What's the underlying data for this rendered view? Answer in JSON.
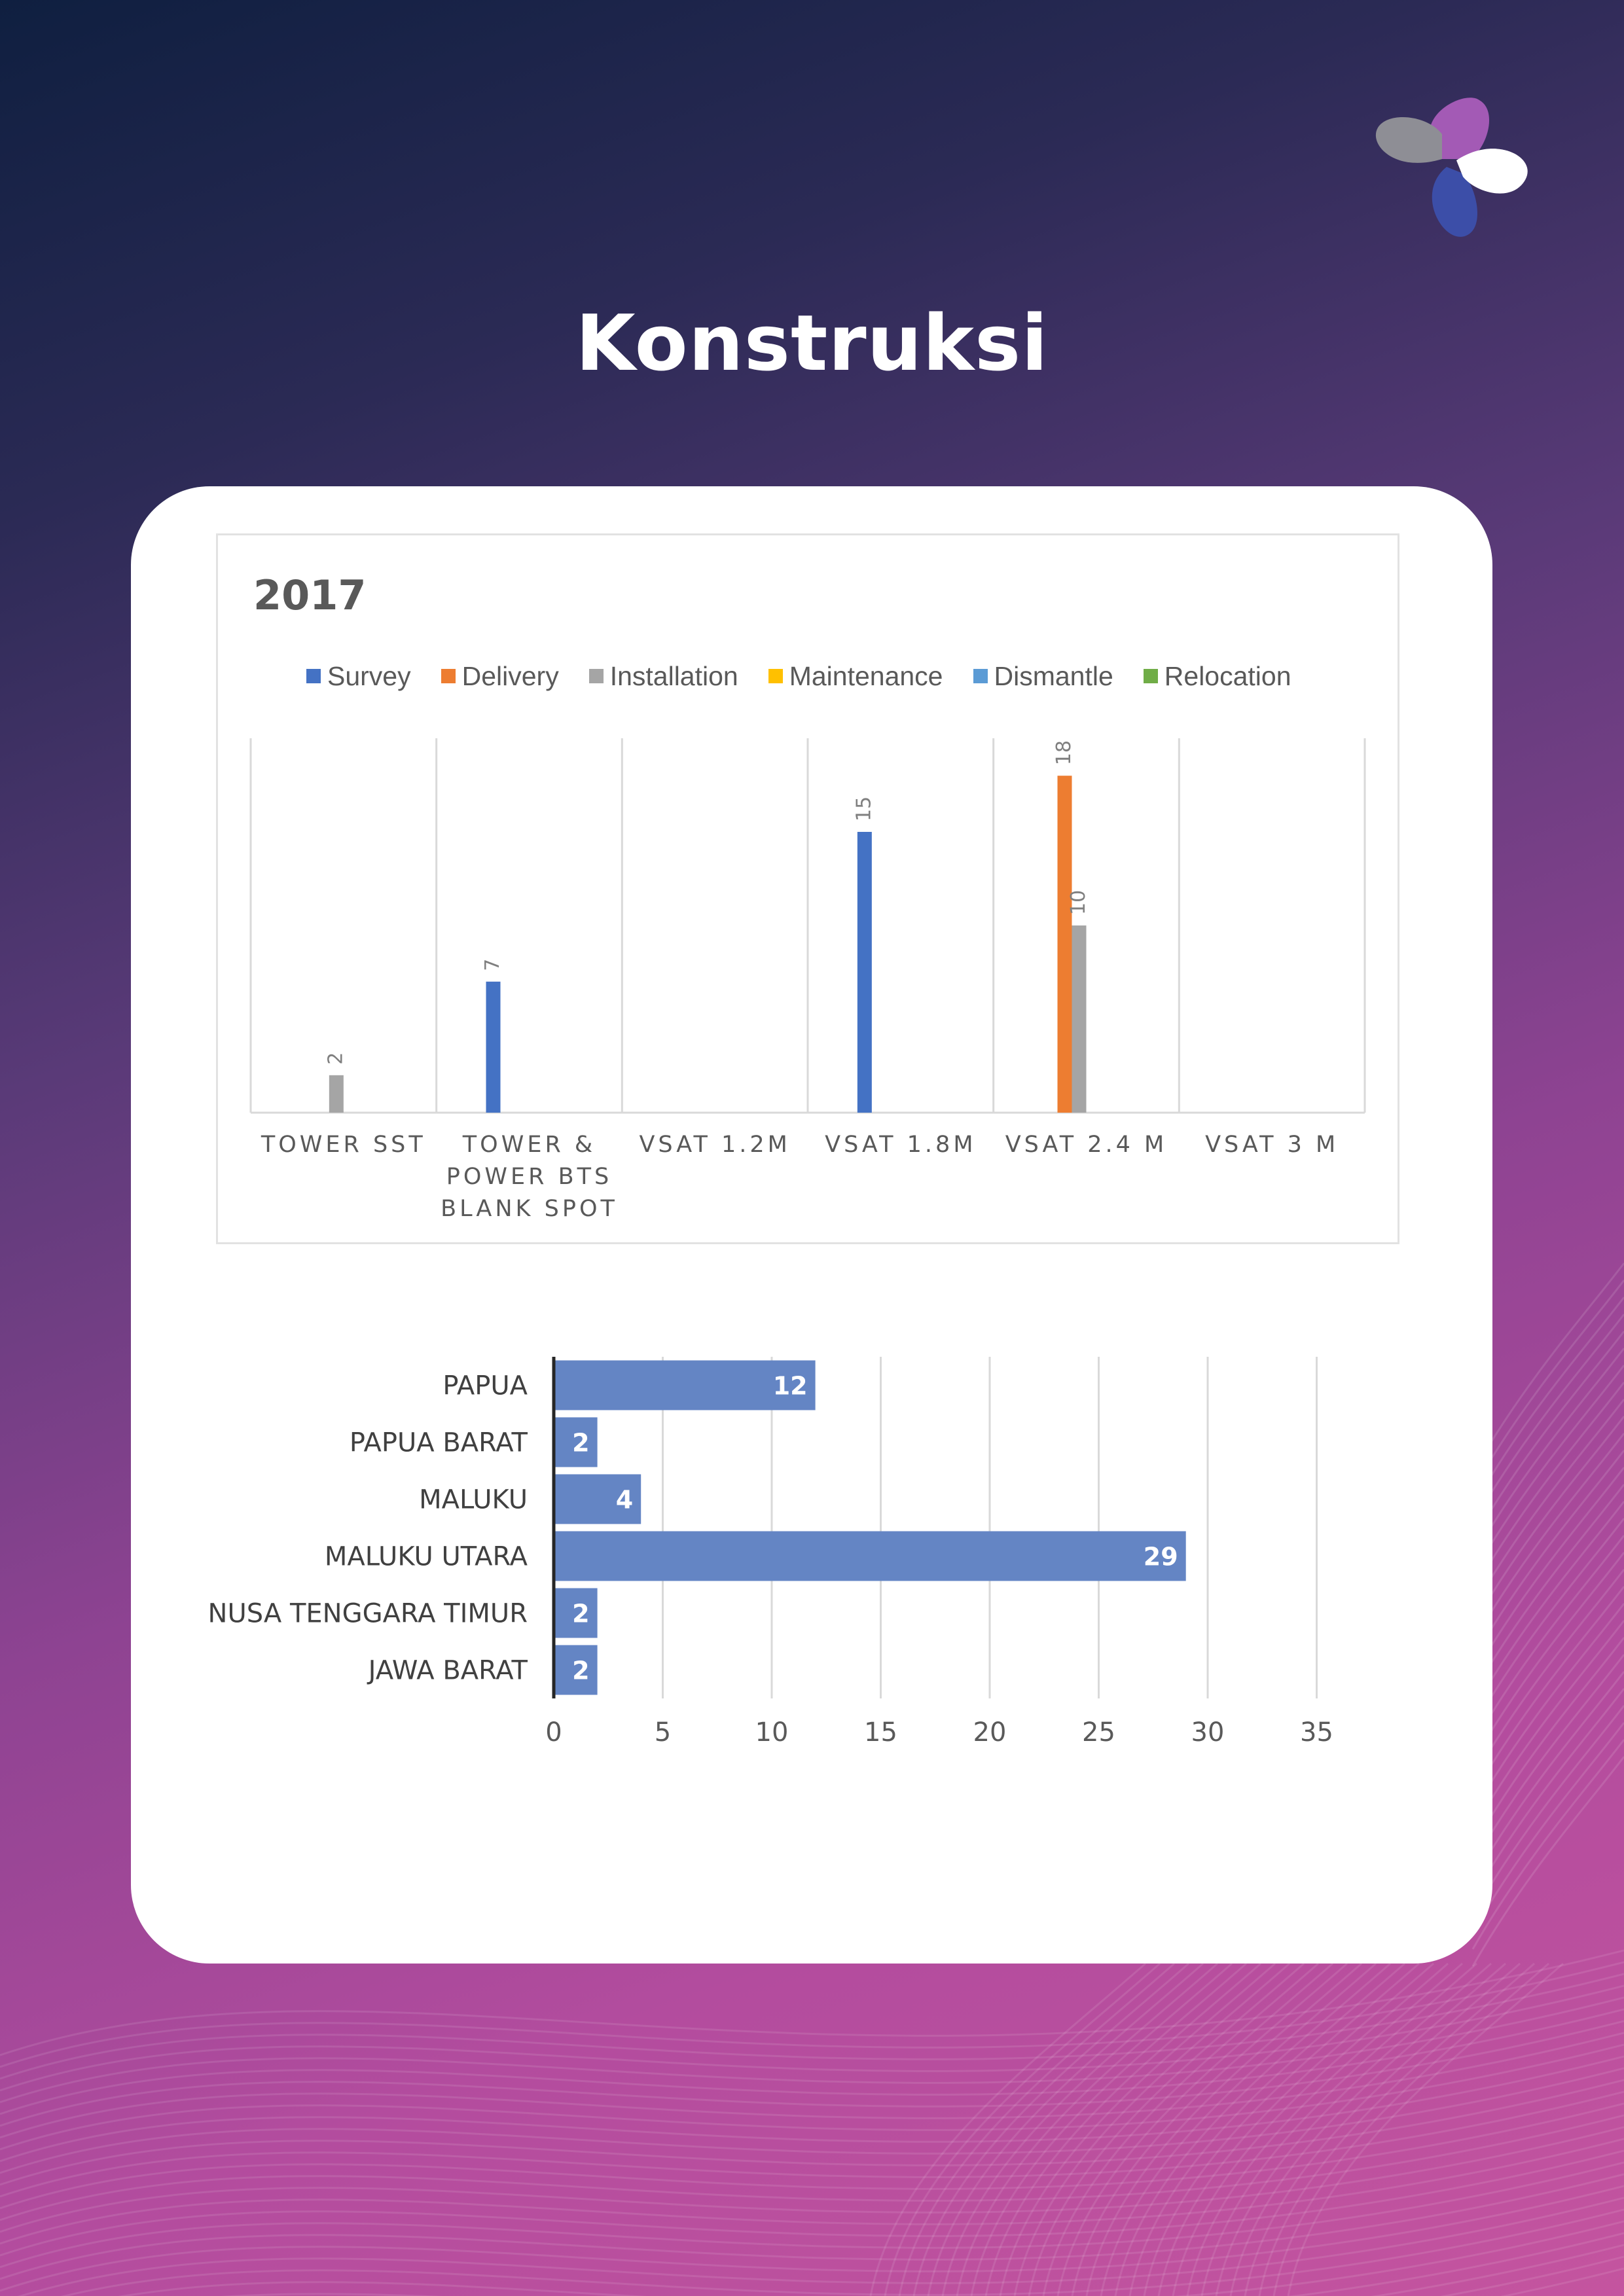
{
  "page": {
    "title": "Konstruksi"
  },
  "colors": {
    "survey": "#4472c4",
    "delivery": "#ed7d31",
    "installation": "#a5a5a5",
    "maintenance": "#ffc000",
    "dismantle": "#5b9bd5",
    "relocation": "#70ad47",
    "bar2": "#6485c4"
  },
  "logo": {
    "icon": "company-logo-icon"
  },
  "chart_data": [
    {
      "type": "bar",
      "title": "2017",
      "categories": [
        "TOWER SST",
        "TOWER & POWER BTS BLANK SPOT",
        "VSAT 1.2M",
        "VSAT 1.8M",
        "VSAT 2.4 M",
        "VSAT 3 M"
      ],
      "category_lines": [
        [
          "TOWER SST"
        ],
        [
          "TOWER &",
          "POWER BTS",
          "BLANK SPOT"
        ],
        [
          "VSAT 1.2M"
        ],
        [
          "VSAT 1.8M"
        ],
        [
          "VSAT 2.4 M"
        ],
        [
          "VSAT 3 M"
        ]
      ],
      "series": [
        {
          "name": "Survey",
          "color_key": "survey",
          "values": [
            0,
            7,
            0,
            15,
            0,
            0
          ]
        },
        {
          "name": "Delivery",
          "color_key": "delivery",
          "values": [
            0,
            0,
            0,
            0,
            18,
            0
          ]
        },
        {
          "name": "Installation",
          "color_key": "installation",
          "values": [
            2,
            0,
            0,
            0,
            10,
            0
          ]
        },
        {
          "name": "Maintenance",
          "color_key": "maintenance",
          "values": [
            0,
            0,
            0,
            0,
            0,
            0
          ]
        },
        {
          "name": "Dismantle",
          "color_key": "dismantle",
          "values": [
            0,
            0,
            0,
            0,
            0,
            0
          ]
        },
        {
          "name": "Relocation",
          "color_key": "relocation",
          "values": [
            0,
            0,
            0,
            0,
            0,
            0
          ]
        }
      ],
      "ylim": [
        0,
        20
      ],
      "legend": "top",
      "grid": "vertical category separators",
      "data_labels": "rotated, non-zero only"
    },
    {
      "type": "bar",
      "orientation": "horizontal",
      "categories": [
        "PAPUA",
        "PAPUA BARAT",
        "MALUKU",
        "MALUKU UTARA",
        "NUSA TENGGARA TIMUR",
        "JAWA BARAT"
      ],
      "values": [
        12,
        2,
        4,
        29,
        2,
        2
      ],
      "xlim": [
        0,
        35
      ],
      "xticks": [
        0,
        5,
        10,
        15,
        20,
        25,
        30,
        35
      ],
      "grid": "vertical",
      "data_labels": "inside end"
    }
  ]
}
